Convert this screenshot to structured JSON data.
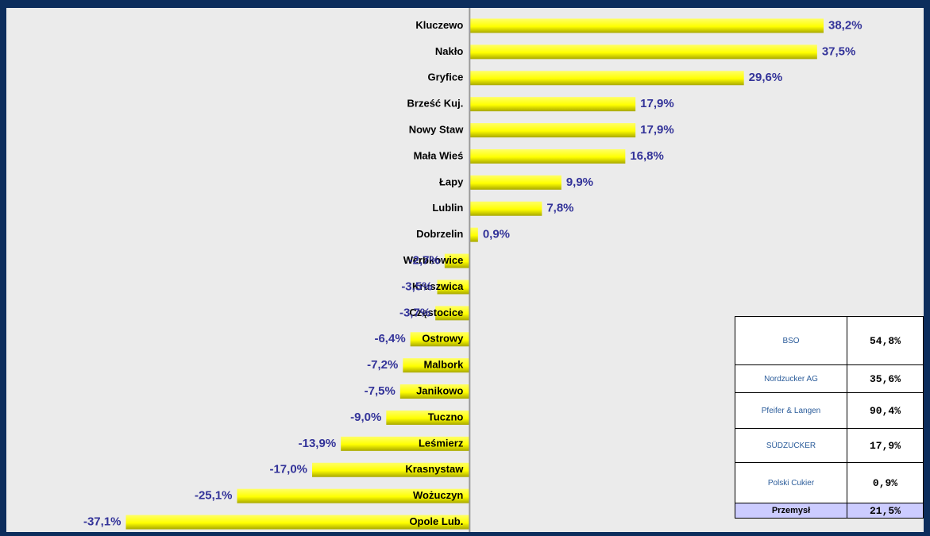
{
  "chart_data": {
    "type": "bar",
    "orientation": "horizontal",
    "categories": [
      "Kluczewo",
      "Nakło",
      "Gryfice",
      "Brześć Kuj.",
      "Nowy Staw",
      "Mała Wieś",
      "Łapy",
      "Lublin",
      "Dobrzelin",
      "Werbkowice",
      "Kruszwica",
      "Częstocice",
      "Ostrowy",
      "Malbork",
      "Janikowo",
      "Tuczno",
      "Leśmierz",
      "Krasnystaw",
      "Wożuczyn",
      "Opole Lub."
    ],
    "values": [
      38.2,
      37.5,
      29.6,
      17.9,
      17.9,
      16.8,
      9.9,
      7.8,
      0.9,
      -2.7,
      -3.5,
      -3.7,
      -6.4,
      -7.2,
      -7.5,
      -9.0,
      -13.9,
      -17.0,
      -25.1,
      -37.1
    ],
    "value_labels": [
      "38,2%",
      "37,5%",
      "29,6%",
      "17,9%",
      "17,9%",
      "16,8%",
      "9,9%",
      "7,8%",
      "0,9%",
      "-2,7%",
      "-3,5%",
      "-3,7%",
      "-6,4%",
      "-7,2%",
      "-7,5%",
      "-9,0%",
      "-13,9%",
      "-17,0%",
      "-25,1%",
      "-37,1%"
    ],
    "color": "#ffff00",
    "label_color": "#333399",
    "xlim": [
      -50,
      49
    ]
  },
  "table": {
    "rows": [
      {
        "name": "BSO",
        "share": "54,8%"
      },
      {
        "name": "Nordzucker AG",
        "share": "35,6%"
      },
      {
        "name": "Pfeifer & Langen",
        "share": "90,4%"
      },
      {
        "name": "SÜDZUCKER",
        "share": "17,9%"
      },
      {
        "name": "Polski Cukier",
        "share": "0,9%"
      },
      {
        "name": "Przemysł",
        "share": "21,5%"
      }
    ]
  }
}
